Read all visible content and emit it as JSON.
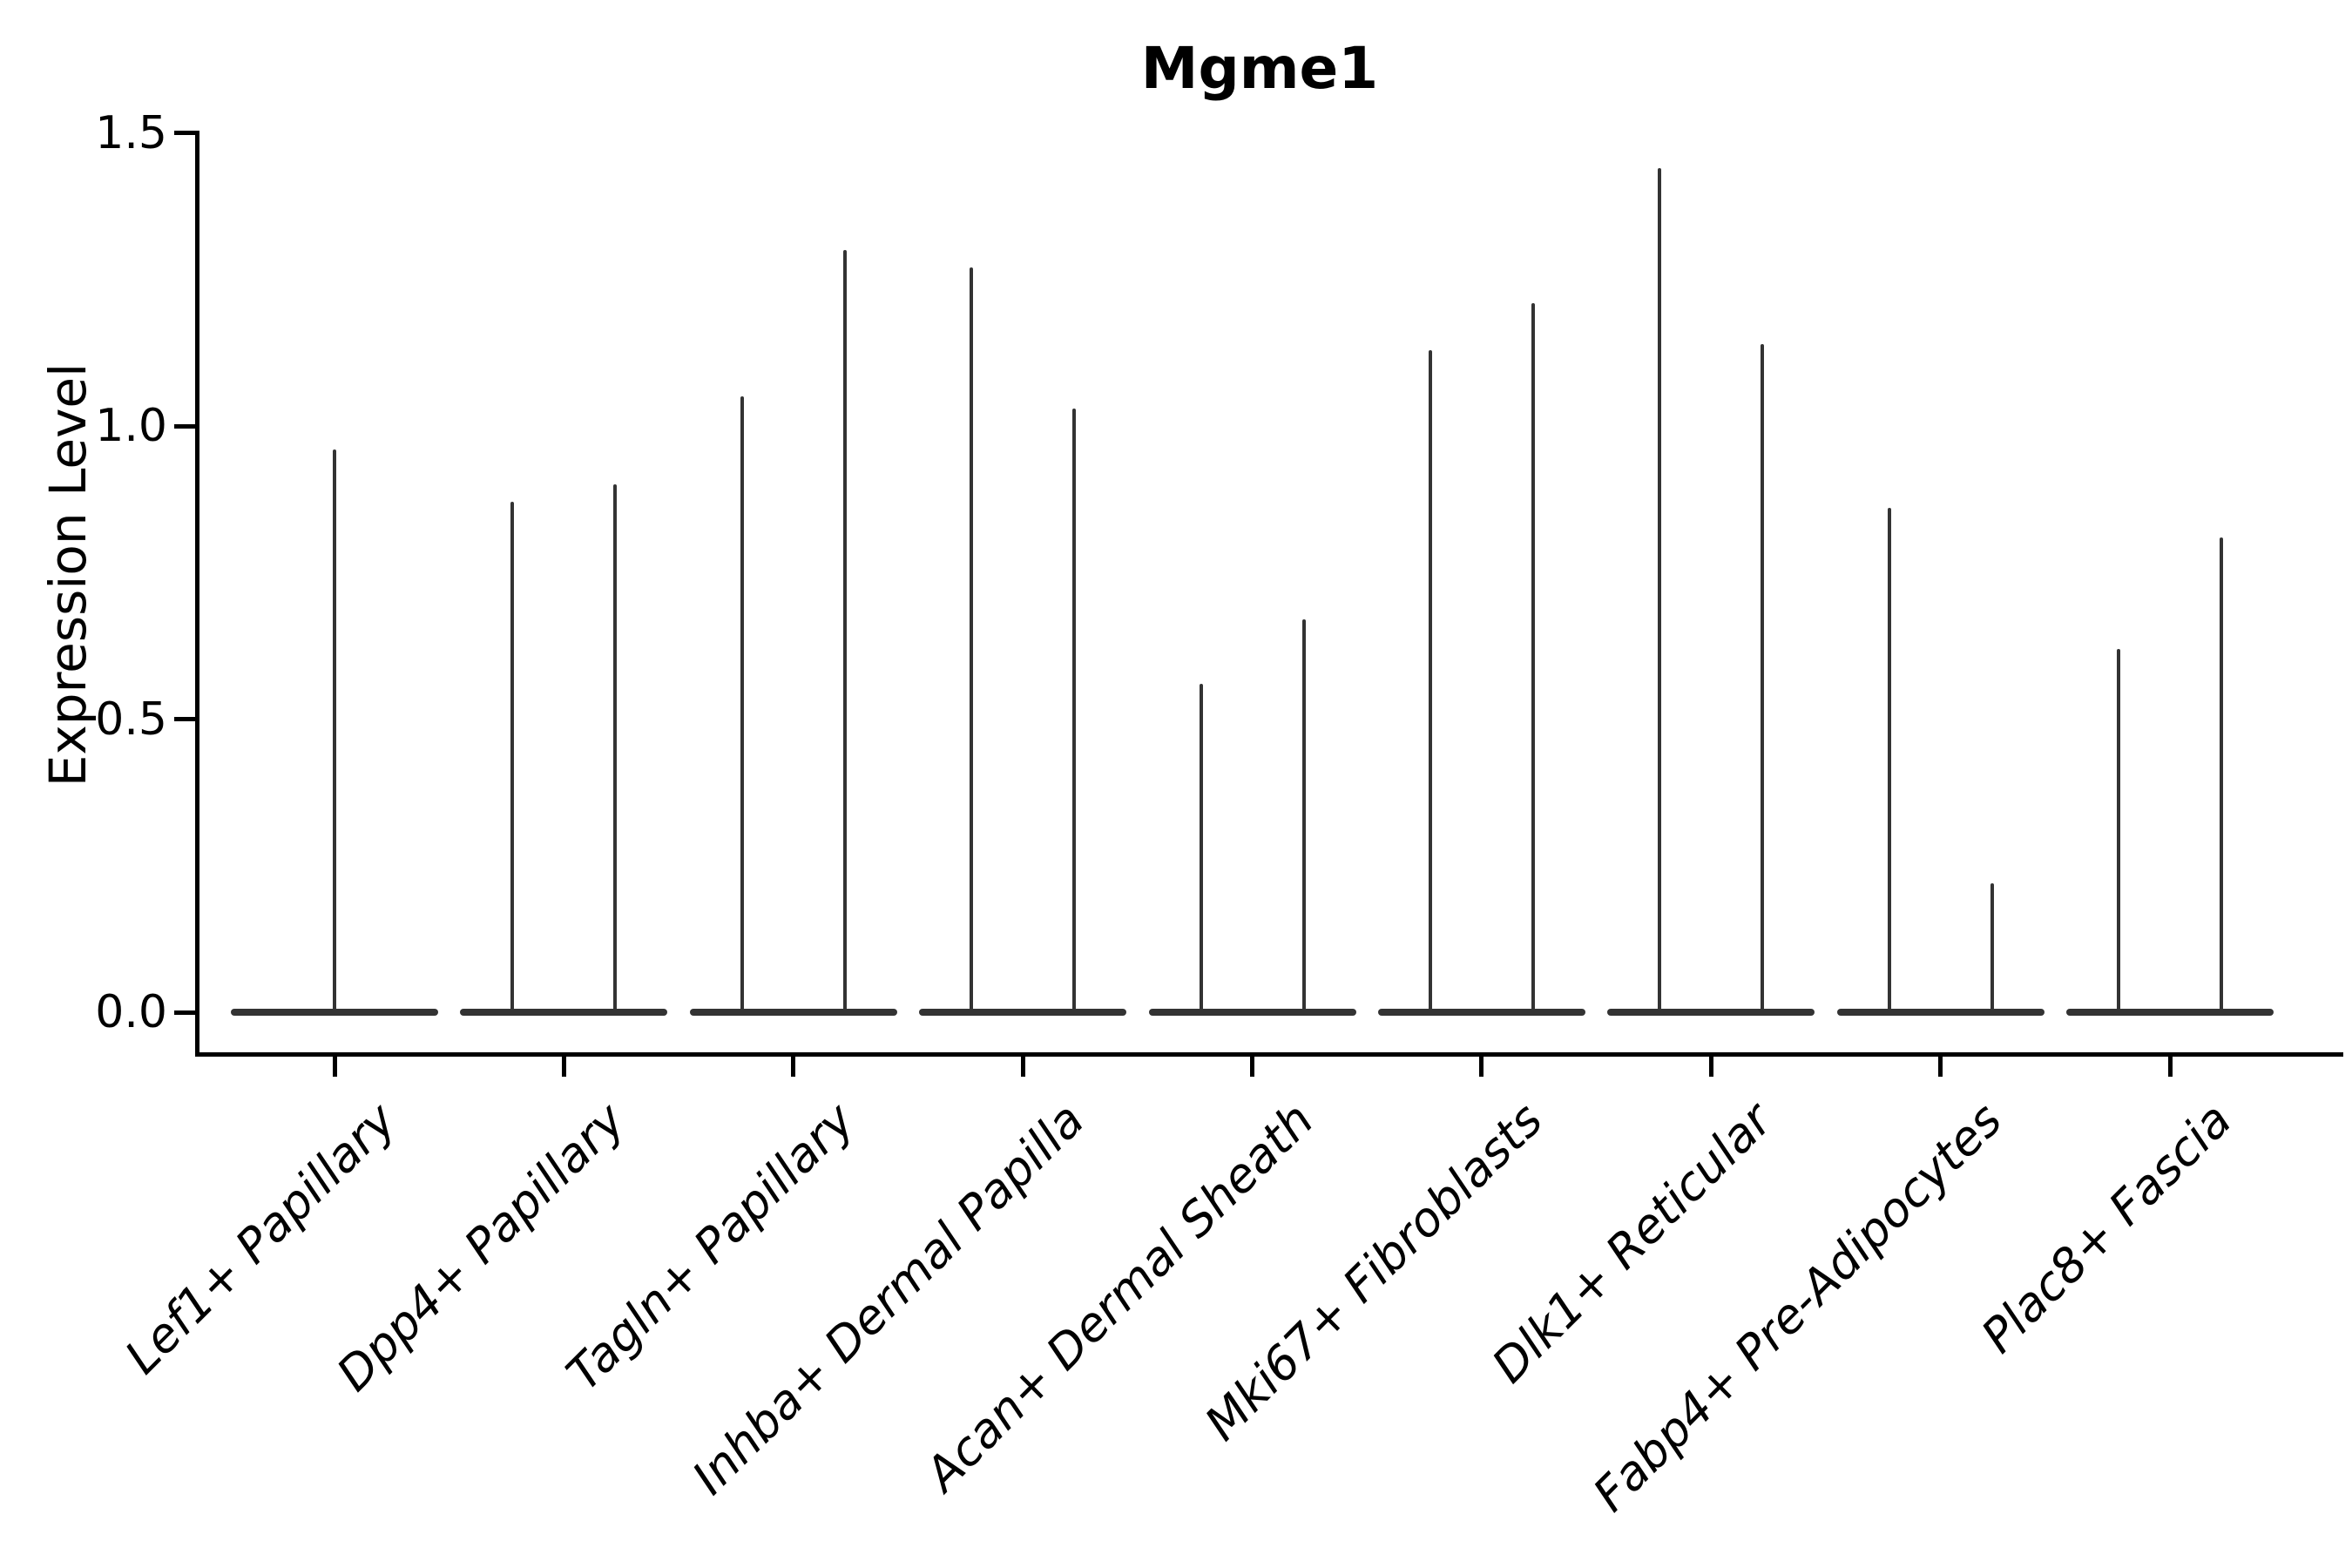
{
  "title": "Mgme1",
  "y_axis": {
    "label": "Expression Level",
    "tick_labels": [
      "0.0",
      "0.5",
      "1.0",
      "1.5"
    ]
  },
  "chart_data": {
    "type": "violin",
    "title": "Mgme1",
    "xlabel": "",
    "ylabel": "Expression Level",
    "ylim": [
      0,
      1.5
    ],
    "yticks": [
      0.0,
      0.5,
      1.0,
      1.5
    ],
    "ytick_labels": [
      "0.0",
      "0.5",
      "1.0",
      "1.5"
    ],
    "grid": false,
    "legend": "none",
    "description": "Violin plot of Mgme1 expression; each cell-type category shows a wide flat density base at expression 0 with one or two narrow spikes reaching the maximum expression values.",
    "categories": [
      {
        "label": "Lef1+ Papillary",
        "spike_peaks": [
          0.96
        ]
      },
      {
        "label": "Dpp4+ Papillary",
        "spike_peaks": [
          0.87,
          0.9
        ]
      },
      {
        "label": "Tagln+ Papillary",
        "spike_peaks": [
          1.05,
          1.3
        ]
      },
      {
        "label": "Inhba+ Dermal Papilla",
        "spike_peaks": [
          1.27,
          1.03
        ]
      },
      {
        "label": "Acan+ Dermal Sheath",
        "spike_peaks": [
          0.56,
          0.67
        ]
      },
      {
        "label": "Mki67+ Fibroblasts",
        "spike_peaks": [
          1.13,
          1.21
        ]
      },
      {
        "label": "Dlk1+ Reticular",
        "spike_peaks": [
          1.44,
          1.14
        ]
      },
      {
        "label": "Fabp4+ Pre-Adipocytes",
        "spike_peaks": [
          0.86,
          0.22
        ]
      },
      {
        "label": "Plac8+ Fascia",
        "spike_peaks": [
          0.62,
          0.81
        ]
      }
    ],
    "baseline_value": 0.0,
    "style": {
      "violin_line_color": "#333333",
      "axis_color": "#000000",
      "text_color": "#000000",
      "background": "#ffffff",
      "x_label_style": "italic",
      "x_label_rotation_deg": 45
    }
  }
}
